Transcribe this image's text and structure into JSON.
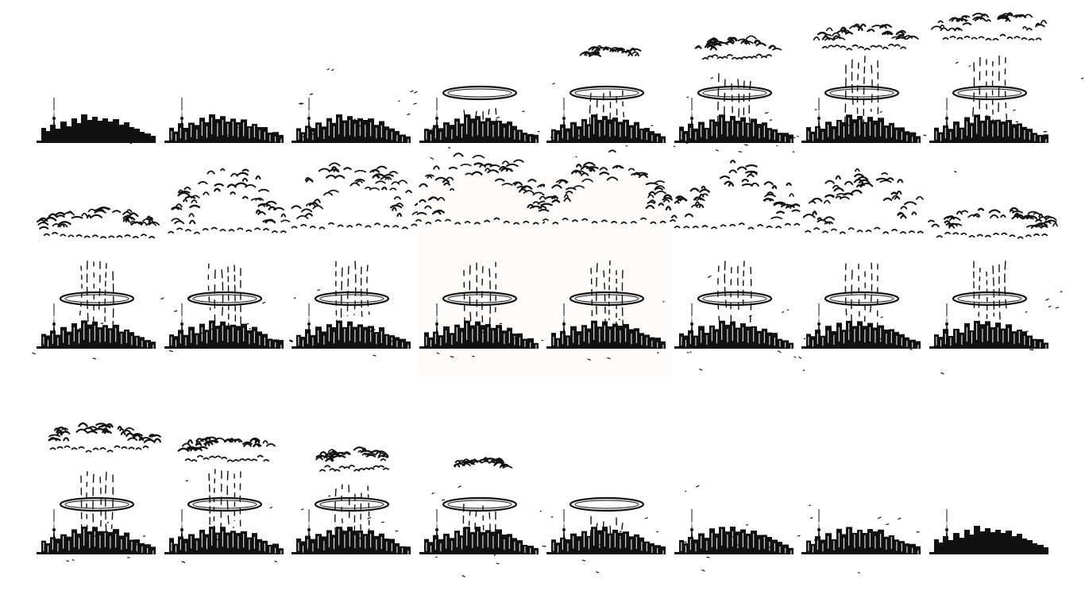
{
  "sprite_sheet": {
    "name": "skyline-explosion-animation",
    "colors": {
      "background": "#ffffff",
      "ink": "#111111",
      "highlight_frame": "#fdfcfa"
    },
    "frames": [
      {
        "stage": 0.0,
        "highlight": false
      },
      {
        "stage": 0.08,
        "highlight": false
      },
      {
        "stage": 0.16,
        "highlight": false
      },
      {
        "stage": 0.26,
        "highlight": false
      },
      {
        "stage": 0.36,
        "highlight": false
      },
      {
        "stage": 0.48,
        "highlight": false
      },
      {
        "stage": 0.6,
        "highlight": false
      },
      {
        "stage": 0.72,
        "highlight": false
      },
      {
        "stage": 0.82,
        "highlight": false
      },
      {
        "stage": 0.88,
        "highlight": false
      },
      {
        "stage": 0.94,
        "highlight": false
      },
      {
        "stage": 1.0,
        "highlight": true
      },
      {
        "stage": 1.0,
        "highlight": true
      },
      {
        "stage": 0.94,
        "highlight": false
      },
      {
        "stage": 0.88,
        "highlight": false
      },
      {
        "stage": 0.82,
        "highlight": false
      },
      {
        "stage": 0.72,
        "highlight": false
      },
      {
        "stage": 0.6,
        "highlight": false
      },
      {
        "stage": 0.48,
        "highlight": false
      },
      {
        "stage": 0.36,
        "highlight": false
      },
      {
        "stage": 0.26,
        "highlight": false
      },
      {
        "stage": 0.16,
        "highlight": false
      },
      {
        "stage": 0.08,
        "highlight": false
      },
      {
        "stage": 0.0,
        "highlight": false
      }
    ]
  }
}
